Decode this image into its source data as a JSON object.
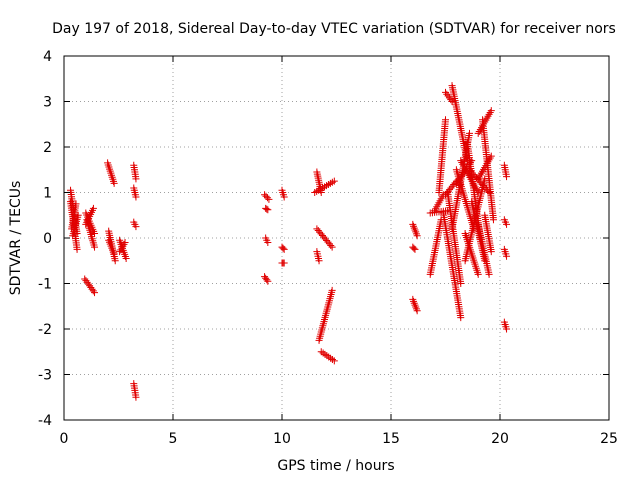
{
  "chart_data": {
    "type": "scatter",
    "title": "Day 197 of 2018, Sidereal Day-to-day VTEC variation (SDTVAR) for receiver nors",
    "xlabel": "GPS time / hours",
    "ylabel": "SDTVAR / TECUs",
    "xlim": [
      0,
      25
    ],
    "ylim": [
      -4,
      4
    ],
    "xticks": [
      0,
      5,
      10,
      15,
      20,
      25
    ],
    "yticks": [
      -4,
      -3,
      -2,
      -1,
      0,
      1,
      2,
      3,
      4
    ],
    "xtick_labels": [
      "0",
      "5",
      "10",
      "15",
      "20",
      "25"
    ],
    "ytick_labels": [
      "-4",
      "-3",
      "-2",
      "-1",
      "0",
      "1",
      "2",
      "3",
      "4"
    ],
    "grid": true,
    "marker": "+",
    "color": "#e00000",
    "segments": [
      {
        "x": [
          0.3,
          0.6
        ],
        "y": [
          1.05,
          0.1
        ]
      },
      {
        "x": [
          0.3,
          0.6
        ],
        "y": [
          0.8,
          -0.25
        ]
      },
      {
        "x": [
          0.35,
          0.55
        ],
        "y": [
          0.2,
          0.75
        ]
      },
      {
        "x": [
          0.4,
          0.65
        ],
        "y": [
          0.05,
          0.5
        ]
      },
      {
        "x": [
          1.0,
          1.4
        ],
        "y": [
          0.55,
          0.1
        ]
      },
      {
        "x": [
          1.0,
          1.35
        ],
        "y": [
          0.3,
          0.65
        ]
      },
      {
        "x": [
          1.05,
          1.4
        ],
        "y": [
          0.4,
          -0.2
        ]
      },
      {
        "x": [
          0.95,
          1.4
        ],
        "y": [
          -0.9,
          -1.2
        ]
      },
      {
        "x": [
          2.0,
          2.3
        ],
        "y": [
          1.65,
          1.2
        ]
      },
      {
        "x": [
          2.05,
          2.35
        ],
        "y": [
          0.15,
          -0.5
        ]
      },
      {
        "x": [
          2.05,
          2.3
        ],
        "y": [
          -0.05,
          -0.35
        ]
      },
      {
        "x": [
          2.55,
          2.85
        ],
        "y": [
          -0.05,
          -0.45
        ]
      },
      {
        "x": [
          2.55,
          2.8
        ],
        "y": [
          -0.3,
          -0.1
        ]
      },
      {
        "x": [
          3.2,
          3.3
        ],
        "y": [
          1.6,
          1.3
        ]
      },
      {
        "x": [
          3.2,
          3.3
        ],
        "y": [
          1.1,
          0.9
        ]
      },
      {
        "x": [
          3.2,
          3.3
        ],
        "y": [
          0.35,
          0.25
        ]
      },
      {
        "x": [
          3.2,
          3.3
        ],
        "y": [
          -3.2,
          -3.5
        ]
      },
      {
        "x": [
          9.2,
          9.4
        ],
        "y": [
          0.95,
          0.85
        ]
      },
      {
        "x": [
          9.25,
          9.35
        ],
        "y": [
          0.65,
          0.62
        ]
      },
      {
        "x": [
          9.25,
          9.35
        ],
        "y": [
          0.0,
          -0.1
        ]
      },
      {
        "x": [
          9.2,
          9.35
        ],
        "y": [
          -0.85,
          -0.95
        ]
      },
      {
        "x": [
          10.0,
          10.1
        ],
        "y": [
          1.05,
          0.9
        ]
      },
      {
        "x": [
          10.0,
          10.1
        ],
        "y": [
          -0.2,
          -0.25
        ]
      },
      {
        "x": [
          10.0,
          10.1
        ],
        "y": [
          -0.55,
          -0.55
        ]
      },
      {
        "x": [
          11.5,
          12.4
        ],
        "y": [
          1.0,
          1.25
        ]
      },
      {
        "x": [
          11.6,
          11.8
        ],
        "y": [
          1.45,
          1.0
        ]
      },
      {
        "x": [
          11.6,
          12.3
        ],
        "y": [
          0.2,
          -0.2
        ]
      },
      {
        "x": [
          11.6,
          11.7
        ],
        "y": [
          -0.3,
          -0.5
        ]
      },
      {
        "x": [
          11.7,
          12.3
        ],
        "y": [
          -2.25,
          -1.15
        ]
      },
      {
        "x": [
          11.8,
          12.4
        ],
        "y": [
          -2.5,
          -2.7
        ]
      },
      {
        "x": [
          16.0,
          16.2
        ],
        "y": [
          0.3,
          0.05
        ]
      },
      {
        "x": [
          16.0,
          16.2
        ],
        "y": [
          -1.35,
          -1.6
        ]
      },
      {
        "x": [
          16.0,
          16.1
        ],
        "y": [
          -0.2,
          -0.25
        ]
      },
      {
        "x": [
          16.8,
          17.3
        ],
        "y": [
          -0.8,
          0.4
        ]
      },
      {
        "x": [
          16.8,
          17.6
        ],
        "y": [
          0.55,
          0.6
        ]
      },
      {
        "x": [
          17.0,
          17.4
        ],
        "y": [
          0.6,
          0.95
        ]
      },
      {
        "x": [
          17.2,
          17.5
        ],
        "y": [
          1.0,
          2.6
        ]
      },
      {
        "x": [
          17.4,
          18.2
        ],
        "y": [
          0.55,
          -1.75
        ]
      },
      {
        "x": [
          17.5,
          17.8
        ],
        "y": [
          3.2,
          3.0
        ]
      },
      {
        "x": [
          17.8,
          18.5
        ],
        "y": [
          3.35,
          1.7
        ]
      },
      {
        "x": [
          17.5,
          18.0
        ],
        "y": [
          0.95,
          1.25
        ]
      },
      {
        "x": [
          17.6,
          18.2
        ],
        "y": [
          1.0,
          -1.0
        ]
      },
      {
        "x": [
          17.8,
          18.6
        ],
        "y": [
          0.2,
          2.3
        ]
      },
      {
        "x": [
          18.0,
          18.7
        ],
        "y": [
          1.2,
          1.7
        ]
      },
      {
        "x": [
          18.0,
          18.8
        ],
        "y": [
          1.5,
          0.2
        ]
      },
      {
        "x": [
          18.2,
          19.0
        ],
        "y": [
          1.7,
          1.0
        ]
      },
      {
        "x": [
          18.4,
          19.0
        ],
        "y": [
          0.1,
          -0.8
        ]
      },
      {
        "x": [
          18.4,
          19.3
        ],
        "y": [
          -0.5,
          1.3
        ]
      },
      {
        "x": [
          18.5,
          19.1
        ],
        "y": [
          2.1,
          0.0
        ]
      },
      {
        "x": [
          18.6,
          19.5
        ],
        "y": [
          1.5,
          1.0
        ]
      },
      {
        "x": [
          18.7,
          19.3
        ],
        "y": [
          0.8,
          -0.5
        ]
      },
      {
        "x": [
          19.0,
          19.6
        ],
        "y": [
          1.3,
          1.8
        ]
      },
      {
        "x": [
          19.0,
          19.5
        ],
        "y": [
          0.3,
          -0.8
        ]
      },
      {
        "x": [
          19.0,
          19.6
        ],
        "y": [
          2.3,
          2.8
        ]
      },
      {
        "x": [
          19.2,
          19.7
        ],
        "y": [
          2.6,
          0.4
        ]
      },
      {
        "x": [
          19.3,
          19.6
        ],
        "y": [
          0.5,
          -0.3
        ]
      },
      {
        "x": [
          20.2,
          20.3
        ],
        "y": [
          1.6,
          1.35
        ]
      },
      {
        "x": [
          20.2,
          20.3
        ],
        "y": [
          0.4,
          0.3
        ]
      },
      {
        "x": [
          20.2,
          20.3
        ],
        "y": [
          -0.25,
          -0.4
        ]
      },
      {
        "x": [
          20.2,
          20.3
        ],
        "y": [
          -1.85,
          -2.0
        ]
      }
    ]
  }
}
